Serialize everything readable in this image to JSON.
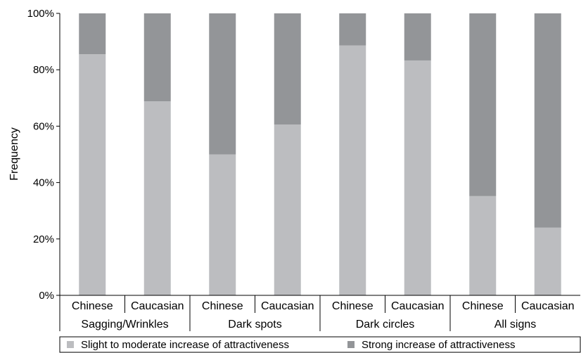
{
  "chart_data": {
    "type": "bar",
    "stacked": true,
    "title": "",
    "xlabel": "",
    "ylabel": "Frequency",
    "ylim": [
      0,
      100
    ],
    "y_ticks": [
      "0%",
      "20%",
      "40%",
      "60%",
      "80%",
      "100%"
    ],
    "categories": [
      "Chinese",
      "Caucasian",
      "Chinese",
      "Caucasian",
      "Chinese",
      "Caucasian",
      "Chinese",
      "Caucasian"
    ],
    "groups": [
      "Sagging/Wrinkles",
      "Dark spots",
      "Dark circles",
      "All signs"
    ],
    "series": [
      {
        "name": "Slight to moderate increase of attractiveness",
        "color": "#bcbdc0",
        "values": [
          85.5,
          68.8,
          50,
          60.6,
          88.6,
          83.3,
          35.2,
          24
        ]
      },
      {
        "name": "Strong increase of attractiveness",
        "color": "#939598",
        "values": [
          14.5,
          31.2,
          50,
          39.4,
          11.4,
          16.7,
          64.8,
          76
        ]
      }
    ],
    "legend_position": "bottom",
    "grid": false
  }
}
